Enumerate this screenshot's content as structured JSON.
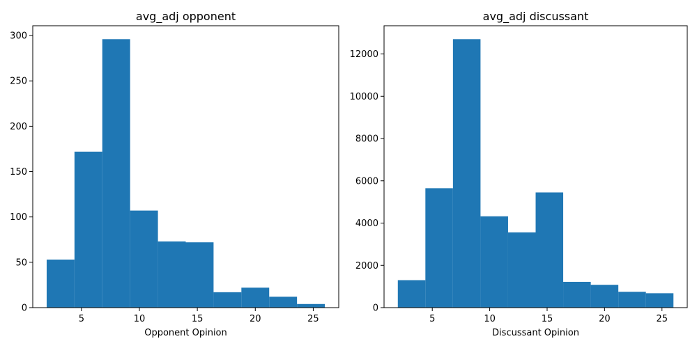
{
  "chart_data": [
    {
      "type": "bar",
      "title": "avg_adj opponent",
      "xlabel": "Opponent Opinion",
      "ylabel": "",
      "bin_edges": [
        2,
        4.4,
        6.8,
        9.2,
        11.6,
        14,
        16.4,
        18.8,
        21.2,
        23.6,
        26
      ],
      "values": [
        53,
        172,
        296,
        107,
        73,
        72,
        17,
        22,
        12,
        4
      ],
      "xlim": [
        0.8,
        27.2
      ],
      "ylim": [
        0,
        310.8
      ],
      "xticks": [
        5,
        10,
        15,
        20,
        25
      ],
      "yticks": [
        0,
        50,
        100,
        150,
        200,
        250,
        300
      ],
      "color": "#1f77b4",
      "grid": false
    },
    {
      "type": "bar",
      "title": "avg_adj discussant",
      "xlabel": "Discussant Opinion",
      "ylabel": "",
      "bin_edges": [
        2,
        4.4,
        6.8,
        9.2,
        11.6,
        14,
        16.4,
        18.8,
        21.2,
        23.6,
        26
      ],
      "values": [
        1300,
        5650,
        12700,
        4320,
        3560,
        5450,
        1220,
        1080,
        750,
        680
      ],
      "xlim": [
        0.8,
        27.2
      ],
      "ylim": [
        0,
        13335
      ],
      "xticks": [
        5,
        10,
        15,
        20,
        25
      ],
      "yticks": [
        0,
        2000,
        4000,
        6000,
        8000,
        10000,
        12000
      ],
      "color": "#1f77b4",
      "grid": false
    }
  ]
}
